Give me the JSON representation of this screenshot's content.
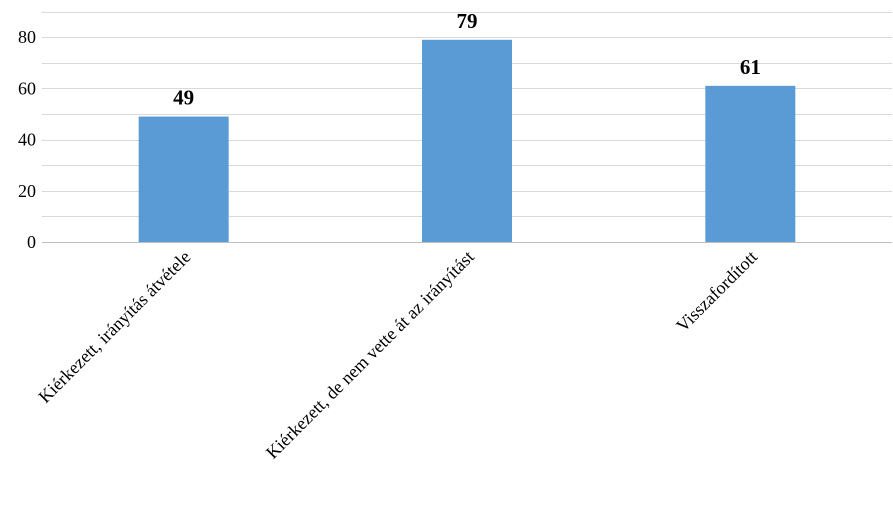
{
  "chart_data": {
    "type": "bar",
    "categories": [
      "Kiérkezett, irányítás átvétele",
      "Kiérkezett, de nem vette át az irányítást",
      "Visszafordított"
    ],
    "values": [
      49,
      79,
      61
    ],
    "title": "",
    "xlabel": "",
    "ylabel": "",
    "ylim": [
      0,
      90
    ],
    "yticks": [
      0,
      20,
      40,
      60,
      80
    ],
    "grid": true,
    "bar_color": "#5b9bd5",
    "data_labels": true
  }
}
